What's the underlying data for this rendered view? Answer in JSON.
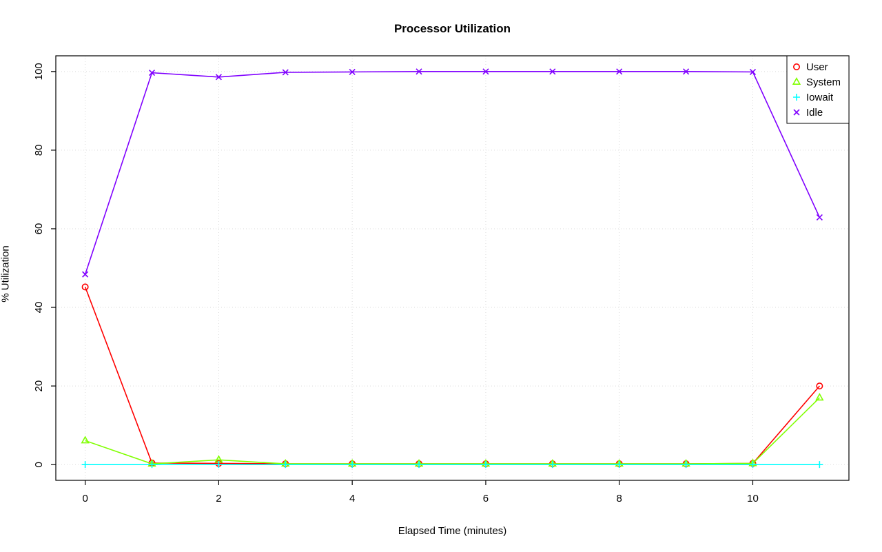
{
  "chart_data": {
    "type": "line",
    "title": "Processor Utilization",
    "xlabel": "Elapsed Time (minutes)",
    "ylabel": "% Utilization",
    "x": [
      0,
      1,
      2,
      3,
      4,
      5,
      6,
      7,
      8,
      9,
      10,
      11
    ],
    "series": [
      {
        "name": "User",
        "color": "#FF0000",
        "marker": "circle",
        "values": [
          45.2,
          0.4,
          0.3,
          0.2,
          0.2,
          0.2,
          0.2,
          0.2,
          0.2,
          0.2,
          0.3,
          20.0
        ]
      },
      {
        "name": "System",
        "color": "#80FF00",
        "marker": "triangle",
        "values": [
          6.1,
          0.2,
          1.2,
          0.2,
          0.2,
          0.2,
          0.2,
          0.2,
          0.2,
          0.2,
          0.3,
          17.0
        ]
      },
      {
        "name": "Iowait",
        "color": "#00FFFF",
        "marker": "plus",
        "values": [
          0,
          0,
          0,
          0,
          0,
          0,
          0,
          0,
          0,
          0,
          0,
          0
        ]
      },
      {
        "name": "Idle",
        "color": "#8000FF",
        "marker": "x",
        "values": [
          48.4,
          99.7,
          98.6,
          99.8,
          99.9,
          100,
          100,
          100,
          100,
          100,
          99.9,
          62.9
        ]
      }
    ],
    "xticks": [
      0,
      2,
      4,
      6,
      8,
      10
    ],
    "yticks": [
      0,
      20,
      40,
      60,
      80,
      100
    ],
    "xlim": [
      -0.44,
      11.44
    ],
    "ylim": [
      -4,
      104
    ],
    "grid": true,
    "grid_color": "#d9d9d9",
    "legend_position": "top-right",
    "legend_labels": [
      "User",
      "System",
      "Iowait",
      "Idle"
    ]
  }
}
